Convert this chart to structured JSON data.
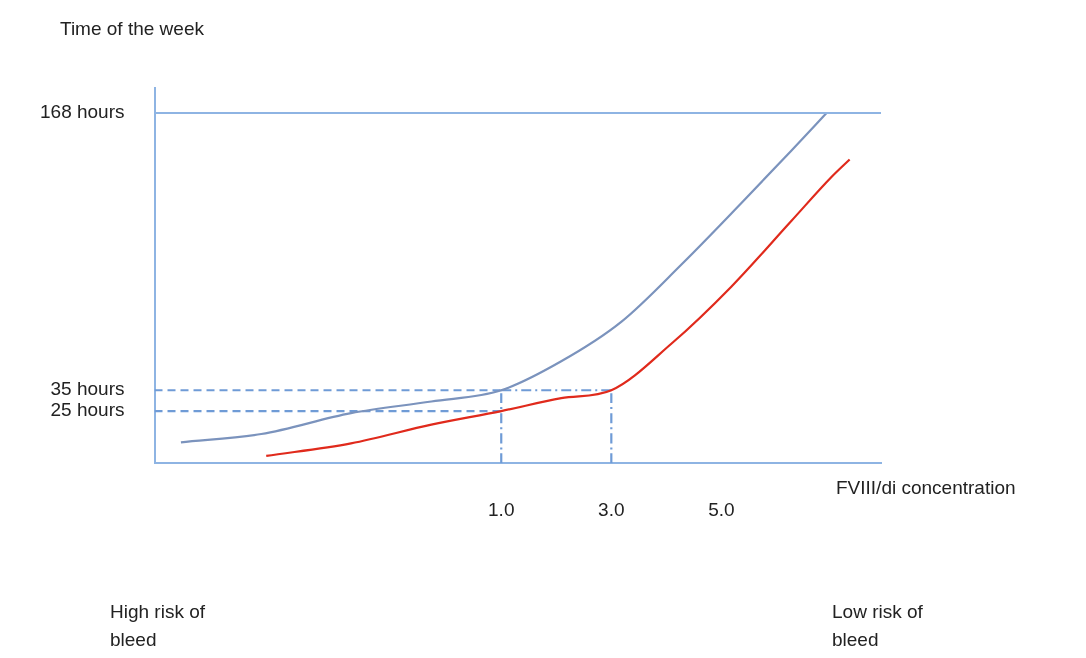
{
  "chart_data": {
    "type": "line",
    "xlabel": "FVIII/di concentration",
    "ylabel": "Time of the week",
    "xlim": [
      -5.3,
      7.9
    ],
    "ylim": [
      0,
      180
    ],
    "xticks": [
      {
        "value": 1,
        "label": "1.0"
      },
      {
        "value": 3,
        "label": "3.0"
      },
      {
        "value": 5,
        "label": "5.0"
      }
    ],
    "yticks": [
      {
        "value": 25,
        "label": "25 hours"
      },
      {
        "value": 35,
        "label": "35 hours"
      },
      {
        "value": 168,
        "label": "168 hours"
      }
    ],
    "grid": false,
    "legend": false,
    "marker": "none",
    "series": [
      {
        "color": "#7b93bd",
        "x": [
          -4.82,
          -3.36,
          -1.73,
          -0.27,
          1.0,
          2.09,
          3.18,
          4.27,
          5.36,
          6.27,
          6.91
        ],
        "values": [
          10,
          14,
          24,
          29.6,
          35,
          48.9,
          67.8,
          95.2,
          124.7,
          149.9,
          168
        ]
      },
      {
        "color": "#e02a1c",
        "x": [
          -3.27,
          -1.73,
          -0.27,
          1.0,
          2.09,
          3.0,
          4.09,
          5.18,
          6.27,
          7.0,
          7.33
        ],
        "values": [
          3.5,
          9.5,
          18.5,
          25,
          31.2,
          35,
          57.3,
          84.7,
          116.2,
          137.3,
          145.7
        ]
      },
      {
        "color": "#6f9bd6",
        "line_style": "dashed",
        "x": [
          -5.3,
          1
        ],
        "values": [
          35,
          35
        ]
      },
      {
        "color": "#6f9bd6",
        "line_style": "dashed",
        "x": [
          -5.3,
          1
        ],
        "values": [
          25,
          25
        ]
      },
      {
        "color": "#6f9bd6",
        "line_style": "dashdot",
        "x": [
          1,
          3
        ],
        "values": [
          35,
          35
        ]
      },
      {
        "color": "#6f9bd6",
        "line_style": "dashdot",
        "x": [
          1,
          1
        ],
        "values": [
          0,
          35
        ]
      },
      {
        "color": "#6f9bd6",
        "line_style": "dashdot",
        "x": [
          3,
          3
        ],
        "values": [
          0,
          35
        ]
      }
    ],
    "ref_lines": [
      {
        "axis": "y",
        "value": 168,
        "color": "#8eb4e3"
      }
    ],
    "annotations": [
      "High risk of bleed",
      "Low risk of bleed"
    ]
  }
}
